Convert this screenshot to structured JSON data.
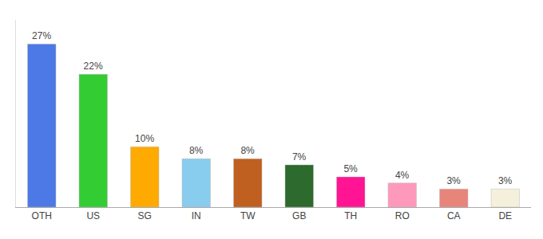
{
  "chart_data": {
    "type": "bar",
    "categories": [
      "OTH",
      "US",
      "SG",
      "IN",
      "TW",
      "GB",
      "TH",
      "RO",
      "CA",
      "DE"
    ],
    "values": [
      27,
      22,
      10,
      8,
      8,
      7,
      5,
      4,
      3,
      3
    ],
    "value_labels": [
      "27%",
      "22%",
      "10%",
      "8%",
      "8%",
      "7%",
      "5%",
      "4%",
      "3%",
      "3%"
    ],
    "colors": [
      "#4d79e6",
      "#33cc33",
      "#ffaa00",
      "#88ccee",
      "#c06020",
      "#2d6a2d",
      "#ff1493",
      "#ff99bb",
      "#e8857a",
      "#f5f0dc"
    ],
    "ylim": [
      0,
      31
    ],
    "grid": false,
    "data_labels": true,
    "tick_labels": "x"
  }
}
